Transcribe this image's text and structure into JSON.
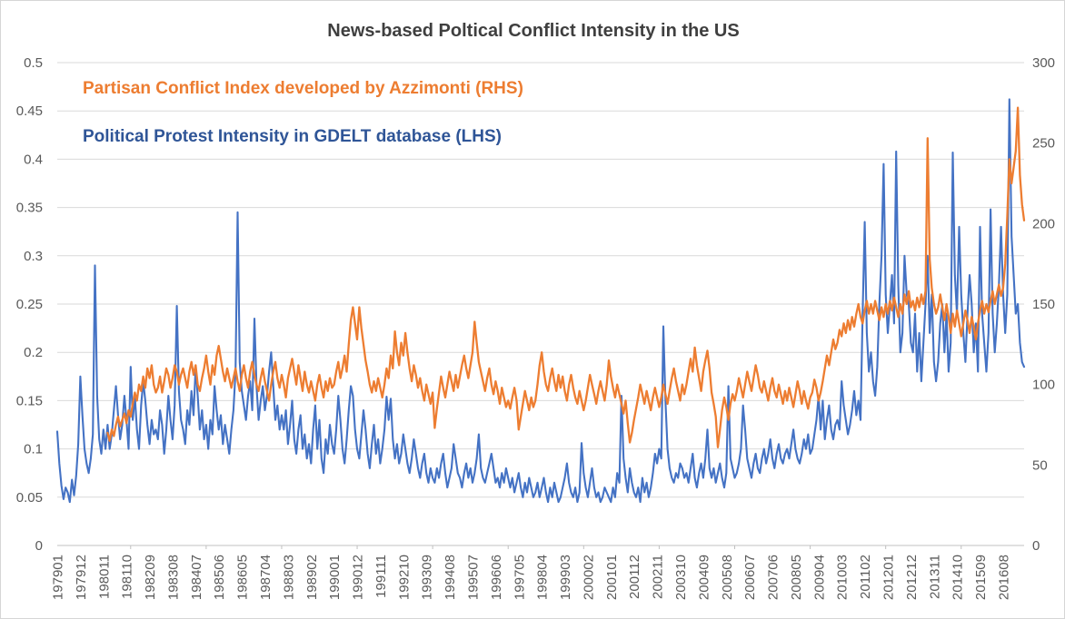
{
  "title": {
    "text": "News-based Poltical Conflict Intensity in the US",
    "color": "#3f3f3f"
  },
  "legend": {
    "partisan": {
      "label": "Partisan Conflict Index developed by Azzimonti (RHS)",
      "color": "#ED7D31"
    },
    "protest": {
      "label": "Political Protest Intensity in GDELT database (LHS)",
      "color": "#2F5597"
    }
  },
  "chart_data": {
    "type": "line",
    "title": "News-based Poltical Conflict Intensity in the US",
    "frequency": "monthly",
    "x_range": {
      "start": "197901",
      "end": "201706"
    },
    "grid": "horizontal-only",
    "gridline_color": "#D9D9D9",
    "axis_line_color": "#C0C0C0",
    "x_tick_labels": [
      "197901",
      "197912",
      "198011",
      "198110",
      "198209",
      "198308",
      "198407",
      "198506",
      "198605",
      "198704",
      "198803",
      "198902",
      "199001",
      "199012",
      "199111",
      "199210",
      "199309",
      "199408",
      "199507",
      "199606",
      "199705",
      "199804",
      "199903",
      "200002",
      "200101",
      "200112",
      "200211",
      "200310",
      "200409",
      "200508",
      "200607",
      "200706",
      "200805",
      "200904",
      "201003",
      "201102",
      "201201",
      "201212",
      "201311",
      "201410",
      "201509",
      "201608"
    ],
    "x_label_interval_months": 11,
    "axes": {
      "left": {
        "min": 0,
        "max": 0.5,
        "tick_labels": [
          "0.5",
          "0.45",
          "0.4",
          "0.35",
          "0.3",
          "0.25",
          "0.2",
          "0.15",
          "0.1",
          "0.05",
          "0"
        ]
      },
      "right": {
        "min": 0,
        "max": 300,
        "tick_labels": [
          "300",
          "250",
          "200",
          "150",
          "100",
          "50",
          "0"
        ]
      }
    },
    "series": [
      {
        "name": "Partisan Conflict Index developed by Azzimonti (RHS)",
        "axis": "right",
        "color": "#ED7D31",
        "start": "198101",
        "values": [
          70,
          65,
          72,
          68,
          75,
          80,
          74,
          78,
          82,
          76,
          84,
          80,
          88,
          95,
          90,
          100,
          96,
          105,
          98,
          110,
          104,
          112,
          100,
          95,
          98,
          105,
          95,
          102,
          110,
          106,
          98,
          104,
          112,
          108,
          100,
          106,
          110,
          104,
          98,
          108,
          114,
          106,
          112,
          100,
          96,
          104,
          110,
          118,
          108,
          100,
          112,
          106,
          118,
          124,
          116,
          108,
          102,
          110,
          104,
          98,
          104,
          110,
          102,
          96,
          106,
          112,
          104,
          98,
          108,
          114,
          106,
          100,
          96,
          104,
          110,
          102,
          96,
          90,
          100,
          108,
          114,
          104,
          98,
          106,
          100,
          92,
          104,
          110,
          116,
          108,
          100,
          112,
          104,
          96,
          108,
          100,
          95,
          102,
          96,
          90,
          100,
          106,
          98,
          92,
          102,
          96,
          104,
          98,
          100,
          108,
          114,
          104,
          110,
          118,
          108,
          125,
          140,
          148,
          138,
          128,
          148,
          135,
          125,
          115,
          108,
          100,
          95,
          102,
          96,
          104,
          98,
          92,
          100,
          110,
          104,
          118,
          110,
          133,
          120,
          112,
          126,
          118,
          132,
          120,
          110,
          102,
          112,
          106,
          98,
          104,
          96,
          90,
          100,
          94,
          88,
          95,
          73,
          85,
          95,
          105,
          98,
          92,
          100,
          108,
          102,
          96,
          106,
          98,
          105,
          112,
          118,
          110,
          104,
          112,
          120,
          139,
          126,
          114,
          108,
          102,
          96,
          104,
          110,
          100,
          94,
          102,
          96,
          88,
          98,
          92,
          86,
          90,
          85,
          92,
          98,
          90,
          72,
          80,
          88,
          96,
          90,
          84,
          92,
          86,
          90,
          100,
          112,
          120,
          108,
          100,
          96,
          104,
          110,
          102,
          96,
          106,
          98,
          105,
          96,
          90,
          100,
          106,
          98,
          92,
          88,
          96,
          90,
          84,
          90,
          98,
          106,
          100,
          94,
          88,
          96,
          102,
          96,
          90,
          100,
          115,
          105,
          98,
          92,
          100,
          94,
          88,
          82,
          90,
          76,
          64,
          70,
          78,
          85,
          92,
          100,
          94,
          88,
          96,
          90,
          84,
          92,
          98,
          92,
          86,
          92,
          100,
          94,
          88,
          96,
          104,
          110,
          102,
          96,
          90,
          100,
          94,
          100,
          108,
          116,
          108,
          123,
          112,
          104,
          96,
          108,
          115,
          121,
          110,
          95,
          88,
          80,
          61,
          72,
          84,
          92,
          86,
          78,
          88,
          94,
          90,
          96,
          104,
          98,
          92,
          100,
          108,
          102,
          96,
          104,
          112,
          106,
          98,
          95,
          102,
          96,
          90,
          98,
          104,
          96,
          92,
          100,
          94,
          88,
          96,
          90,
          98,
          92,
          86,
          94,
          102,
          96,
          88,
          96,
          90,
          85,
          92,
          95,
          103,
          98,
          90,
          95,
          102,
          110,
          118,
          112,
          120,
          128,
          122,
          126,
          134,
          130,
          138,
          132,
          140,
          134,
          142,
          136,
          144,
          150,
          142,
          138,
          146,
          152,
          144,
          150,
          144,
          152,
          146,
          140,
          148,
          142,
          150,
          144,
          152,
          146,
          154,
          148,
          142,
          150,
          144,
          156,
          150,
          158,
          148,
          152,
          146,
          154,
          148,
          156,
          150,
          158,
          253,
          178,
          160,
          150,
          144,
          148,
          156,
          148,
          140,
          150,
          142,
          132,
          144,
          136,
          146,
          138,
          130,
          138,
          146,
          140,
          132,
          142,
          136,
          128,
          138,
          146,
          152,
          144,
          150,
          145,
          152,
          158,
          150,
          156,
          162,
          155,
          160,
          175,
          205,
          240,
          225,
          235,
          245,
          272,
          230,
          212,
          202
        ]
      },
      {
        "name": "Political Protest Intensity in GDELT database (LHS)",
        "axis": "left",
        "color": "#4472C4",
        "start": "197901",
        "values": [
          0.118,
          0.085,
          0.062,
          0.048,
          0.06,
          0.055,
          0.045,
          0.068,
          0.052,
          0.072,
          0.105,
          0.175,
          0.135,
          0.1,
          0.085,
          0.075,
          0.09,
          0.115,
          0.29,
          0.155,
          0.11,
          0.095,
          0.12,
          0.1,
          0.125,
          0.1,
          0.115,
          0.14,
          0.165,
          0.135,
          0.11,
          0.125,
          0.155,
          0.13,
          0.1,
          0.185,
          0.13,
          0.155,
          0.12,
          0.1,
          0.145,
          0.17,
          0.15,
          0.125,
          0.105,
          0.13,
          0.115,
          0.12,
          0.11,
          0.14,
          0.125,
          0.095,
          0.12,
          0.155,
          0.13,
          0.11,
          0.145,
          0.248,
          0.16,
          0.13,
          0.12,
          0.105,
          0.14,
          0.125,
          0.16,
          0.135,
          0.185,
          0.155,
          0.12,
          0.14,
          0.11,
          0.125,
          0.1,
          0.13,
          0.115,
          0.165,
          0.14,
          0.12,
          0.135,
          0.105,
          0.125,
          0.11,
          0.095,
          0.12,
          0.14,
          0.18,
          0.345,
          0.19,
          0.16,
          0.145,
          0.13,
          0.155,
          0.17,
          0.14,
          0.235,
          0.165,
          0.13,
          0.15,
          0.165,
          0.14,
          0.155,
          0.18,
          0.2,
          0.165,
          0.13,
          0.145,
          0.12,
          0.135,
          0.12,
          0.14,
          0.105,
          0.125,
          0.15,
          0.11,
          0.095,
          0.12,
          0.135,
          0.1,
          0.115,
          0.09,
          0.105,
          0.085,
          0.12,
          0.145,
          0.1,
          0.13,
          0.09,
          0.075,
          0.11,
          0.095,
          0.125,
          0.105,
          0.095,
          0.12,
          0.155,
          0.13,
          0.1,
          0.085,
          0.11,
          0.14,
          0.165,
          0.155,
          0.12,
          0.1,
          0.09,
          0.115,
          0.14,
          0.12,
          0.095,
          0.08,
          0.105,
          0.125,
          0.095,
          0.11,
          0.085,
          0.1,
          0.12,
          0.154,
          0.13,
          0.152,
          0.11,
          0.09,
          0.105,
          0.085,
          0.095,
          0.115,
          0.1,
          0.085,
          0.075,
          0.09,
          0.11,
          0.095,
          0.08,
          0.07,
          0.085,
          0.095,
          0.075,
          0.065,
          0.08,
          0.07,
          0.065,
          0.08,
          0.07,
          0.085,
          0.095,
          0.075,
          0.06,
          0.07,
          0.08,
          0.105,
          0.09,
          0.075,
          0.07,
          0.06,
          0.075,
          0.085,
          0.07,
          0.08,
          0.065,
          0.075,
          0.09,
          0.115,
          0.08,
          0.07,
          0.065,
          0.075,
          0.085,
          0.095,
          0.08,
          0.065,
          0.07,
          0.06,
          0.075,
          0.065,
          0.08,
          0.07,
          0.06,
          0.07,
          0.055,
          0.065,
          0.075,
          0.06,
          0.05,
          0.065,
          0.055,
          0.07,
          0.06,
          0.05,
          0.055,
          0.065,
          0.05,
          0.06,
          0.07,
          0.055,
          0.045,
          0.06,
          0.05,
          0.065,
          0.055,
          0.045,
          0.05,
          0.06,
          0.07,
          0.085,
          0.065,
          0.055,
          0.05,
          0.06,
          0.045,
          0.055,
          0.106,
          0.075,
          0.06,
          0.05,
          0.065,
          0.08,
          0.06,
          0.05,
          0.055,
          0.045,
          0.05,
          0.06,
          0.055,
          0.05,
          0.045,
          0.06,
          0.05,
          0.075,
          0.065,
          0.155,
          0.09,
          0.07,
          0.055,
          0.08,
          0.065,
          0.055,
          0.05,
          0.06,
          0.045,
          0.07,
          0.055,
          0.065,
          0.05,
          0.06,
          0.075,
          0.095,
          0.085,
          0.1,
          0.09,
          0.227,
          0.15,
          0.1,
          0.08,
          0.07,
          0.065,
          0.075,
          0.07,
          0.085,
          0.08,
          0.07,
          0.075,
          0.065,
          0.08,
          0.095,
          0.07,
          0.06,
          0.075,
          0.085,
          0.07,
          0.09,
          0.12,
          0.08,
          0.07,
          0.08,
          0.065,
          0.075,
          0.085,
          0.07,
          0.06,
          0.075,
          0.165,
          0.09,
          0.08,
          0.07,
          0.075,
          0.085,
          0.1,
          0.145,
          0.12,
          0.09,
          0.08,
          0.07,
          0.085,
          0.095,
          0.08,
          0.075,
          0.09,
          0.1,
          0.085,
          0.095,
          0.11,
          0.09,
          0.08,
          0.095,
          0.105,
          0.09,
          0.085,
          0.095,
          0.1,
          0.09,
          0.105,
          0.12,
          0.1,
          0.09,
          0.085,
          0.095,
          0.11,
          0.1,
          0.115,
          0.095,
          0.1,
          0.115,
          0.13,
          0.155,
          0.12,
          0.15,
          0.11,
          0.13,
          0.145,
          0.12,
          0.11,
          0.125,
          0.13,
          0.12,
          0.17,
          0.145,
          0.13,
          0.115,
          0.125,
          0.14,
          0.16,
          0.135,
          0.15,
          0.13,
          0.24,
          0.335,
          0.22,
          0.18,
          0.2,
          0.17,
          0.155,
          0.185,
          0.25,
          0.3,
          0.395,
          0.26,
          0.22,
          0.25,
          0.28,
          0.23,
          0.408,
          0.27,
          0.2,
          0.22,
          0.3,
          0.26,
          0.25,
          0.21,
          0.2,
          0.24,
          0.18,
          0.22,
          0.17,
          0.21,
          0.25,
          0.3,
          0.22,
          0.26,
          0.19,
          0.17,
          0.19,
          0.23,
          0.25,
          0.2,
          0.24,
          0.18,
          0.21,
          0.407,
          0.28,
          0.24,
          0.33,
          0.26,
          0.22,
          0.19,
          0.24,
          0.28,
          0.25,
          0.2,
          0.23,
          0.18,
          0.33,
          0.24,
          0.21,
          0.18,
          0.22,
          0.348,
          0.24,
          0.2,
          0.23,
          0.27,
          0.33,
          0.26,
          0.22,
          0.26,
          0.462,
          0.32,
          0.28,
          0.24,
          0.25,
          0.21,
          0.19,
          0.185
        ]
      }
    ]
  }
}
